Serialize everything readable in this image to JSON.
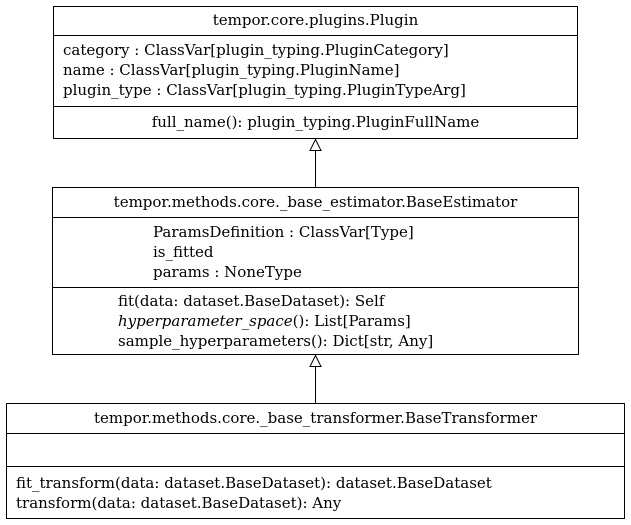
{
  "classes": {
    "plugin": {
      "name": "tempor.core.plugins.Plugin",
      "attributes": [
        "category : ClassVar[plugin_typing.PluginCategory]",
        "name : ClassVar[plugin_typing.PluginName]",
        "plugin_type : ClassVar[plugin_typing.PluginTypeArg]"
      ],
      "methods": [
        "full_name(): plugin_typing.PluginFullName"
      ]
    },
    "base_estimator": {
      "name": "tempor.methods.core._base_estimator.BaseEstimator",
      "attributes": [
        "ParamsDefinition : ClassVar[Type]",
        "is_fitted",
        "params : NoneType"
      ],
      "methods": [
        "fit(data: dataset.BaseDataset): Self",
        "hyperparameter_space(): List[Params]",
        "sample_hyperparameters(): Dict[str, Any]"
      ],
      "abstract_method_name": "hyperparameter_space",
      "abstract_method_rest": "(): List[Params]"
    },
    "base_transformer": {
      "name": "tempor.methods.core._base_transformer.BaseTransformer",
      "attributes": [],
      "methods": [
        "fit_transform(data: dataset.BaseDataset): dataset.BaseDataset",
        "transform(data: dataset.BaseDataset): Any"
      ]
    }
  },
  "relations": [
    {
      "type": "inheritance",
      "from": "base_estimator",
      "to": "plugin"
    },
    {
      "type": "inheritance",
      "from": "base_transformer",
      "to": "base_estimator"
    }
  ]
}
